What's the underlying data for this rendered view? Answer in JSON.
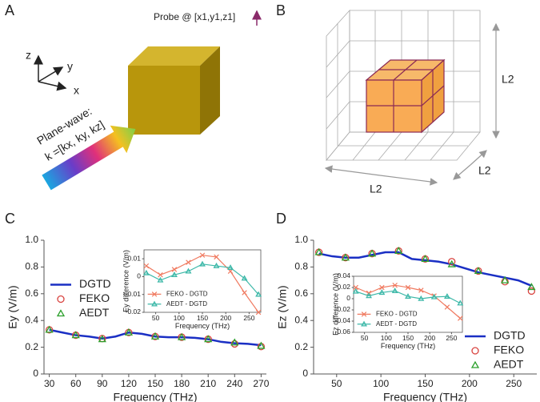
{
  "figure": {
    "panel_labels": [
      "A",
      "B",
      "C",
      "D"
    ],
    "panel_a": {
      "probe": "Probe @ [x1,y1,z1]",
      "axes": [
        "z",
        "y",
        "x"
      ],
      "wave_title": "Plane-wave:",
      "wave_vector": "k =[kx, ky, kz]"
    },
    "panel_b": {
      "dimension_labels": [
        "L2",
        "L2",
        "L2"
      ]
    }
  },
  "chart_data": [
    {
      "type": "line",
      "xlabel": "Frequency (THz)",
      "ylabel": "Ey (V/m)",
      "xlim": [
        24,
        276
      ],
      "xticks": [
        30,
        60,
        90,
        120,
        150,
        180,
        210,
        240,
        270
      ],
      "ylim": [
        0,
        1
      ],
      "yticks": [
        0,
        0.2,
        0.4,
        0.6,
        0.8,
        {
          "value": 1,
          "label": "1.0"
        }
      ],
      "legend": "center left",
      "series": [
        {
          "name": "DGTD",
          "color": "#1a2fc4",
          "line": true,
          "marker": "none",
          "x": [
            30,
            45,
            60,
            75,
            90,
            105,
            120,
            135,
            150,
            165,
            180,
            195,
            210,
            225,
            240,
            255,
            270
          ],
          "values": [
            0.33,
            0.31,
            0.29,
            0.28,
            0.265,
            0.28,
            0.31,
            0.3,
            0.28,
            0.275,
            0.275,
            0.27,
            0.26,
            0.24,
            0.23,
            0.225,
            0.215
          ]
        },
        {
          "name": "FEKO",
          "color": "#d9433f",
          "line": false,
          "marker": "circle",
          "x": [
            30,
            60,
            90,
            120,
            150,
            180,
            210,
            240,
            270
          ],
          "values": [
            0.33,
            0.29,
            0.265,
            0.31,
            0.28,
            0.275,
            0.26,
            0.225,
            0.205
          ]
        },
        {
          "name": "AEDT",
          "color": "#2ca02c",
          "line": false,
          "marker": "triangle",
          "x": [
            30,
            60,
            90,
            120,
            150,
            180,
            210,
            240,
            270
          ],
          "values": [
            0.33,
            0.29,
            0.26,
            0.31,
            0.28,
            0.275,
            0.26,
            0.235,
            0.21
          ]
        }
      ]
    },
    {
      "type": "line",
      "xlabel": "Frequency (THz)",
      "ylabel": "Ey difference (V/m)",
      "xlim": [
        25,
        275
      ],
      "xticks": [
        50,
        100,
        150,
        200,
        250
      ],
      "ylim": [
        -0.02,
        0.015
      ],
      "yticks": [
        -0.02,
        -0.01,
        0,
        0.01
      ],
      "legend": "lower left",
      "series": [
        {
          "name": "FEKO - DGTD",
          "color": "#f07a60",
          "line": true,
          "marker": "x",
          "x": [
            30,
            60,
            90,
            120,
            150,
            180,
            210,
            240,
            270
          ],
          "values": [
            0.006,
            0.001,
            0.004,
            0.008,
            0.012,
            0.011,
            0.003,
            -0.009,
            -0.02
          ]
        },
        {
          "name": "AEDT - DGTD",
          "color": "#3cb8a8",
          "line": true,
          "marker": "triangle",
          "x": [
            30,
            60,
            90,
            120,
            150,
            180,
            210,
            240,
            270
          ],
          "values": [
            0.002,
            -0.002,
            0.001,
            0.003,
            0.007,
            0.006,
            0.005,
            -0.001,
            -0.01
          ]
        }
      ]
    },
    {
      "type": "line",
      "xlabel": "Frequency (THz)",
      "ylabel": "Ez (V/m)",
      "xlim": [
        24,
        276
      ],
      "xticks": [
        50,
        100,
        150,
        200,
        250
      ],
      "ylim": [
        0,
        1
      ],
      "yticks": [
        0,
        0.2,
        0.4,
        0.6,
        0.8,
        {
          "value": 1,
          "label": "1.0"
        }
      ],
      "legend": "lower right",
      "series": [
        {
          "name": "DGTD",
          "color": "#1a2fc4",
          "line": true,
          "marker": "none",
          "x": [
            30,
            45,
            60,
            75,
            90,
            105,
            120,
            135,
            150,
            165,
            180,
            195,
            210,
            225,
            240,
            255,
            270
          ],
          "values": [
            0.9,
            0.88,
            0.87,
            0.87,
            0.89,
            0.91,
            0.91,
            0.86,
            0.85,
            0.84,
            0.82,
            0.79,
            0.76,
            0.74,
            0.72,
            0.7,
            0.66
          ]
        },
        {
          "name": "FEKO",
          "color": "#d9433f",
          "line": false,
          "marker": "circle",
          "x": [
            30,
            60,
            90,
            120,
            150,
            180,
            210,
            240,
            270
          ],
          "values": [
            0.91,
            0.87,
            0.9,
            0.92,
            0.86,
            0.84,
            0.77,
            0.69,
            0.62
          ]
        },
        {
          "name": "AEDT",
          "color": "#2ca02c",
          "line": false,
          "marker": "triangle",
          "x": [
            30,
            60,
            90,
            120,
            150,
            180,
            210,
            240,
            270
          ],
          "values": [
            0.91,
            0.87,
            0.9,
            0.92,
            0.86,
            0.82,
            0.77,
            0.7,
            0.65
          ]
        }
      ]
    },
    {
      "type": "line",
      "xlabel": "Frequency (THz)",
      "ylabel": "Ez difference (V/m)",
      "xlim": [
        25,
        275
      ],
      "xticks": [
        50,
        100,
        150,
        200,
        250
      ],
      "ylim": [
        -0.06,
        0.04
      ],
      "yticks": [
        -0.06,
        -0.04,
        -0.02,
        0,
        0.02,
        0.04
      ],
      "legend": "lower left",
      "series": [
        {
          "name": "FEKO - DGTD",
          "color": "#f07a60",
          "line": true,
          "marker": "x",
          "x": [
            30,
            60,
            90,
            120,
            150,
            180,
            210,
            240,
            270
          ],
          "values": [
            0.02,
            0.01,
            0.02,
            0.024,
            0.02,
            0.015,
            0.005,
            -0.015,
            -0.035
          ]
        },
        {
          "name": "AEDT - DGTD",
          "color": "#3cb8a8",
          "line": true,
          "marker": "triangle",
          "x": [
            30,
            60,
            90,
            120,
            150,
            180,
            210,
            240,
            270
          ],
          "values": [
            0.013,
            0.005,
            0.011,
            0.014,
            0.004,
            0,
            0.003,
            0.004,
            -0.008
          ]
        }
      ]
    }
  ]
}
